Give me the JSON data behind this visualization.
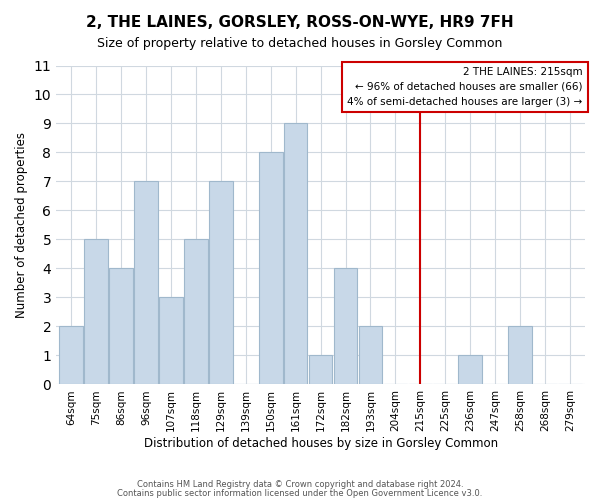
{
  "title": "2, THE LAINES, GORSLEY, ROSS-ON-WYE, HR9 7FH",
  "subtitle": "Size of property relative to detached houses in Gorsley Common",
  "xlabel": "Distribution of detached houses by size in Gorsley Common",
  "ylabel": "Number of detached properties",
  "bar_labels": [
    "64sqm",
    "75sqm",
    "86sqm",
    "96sqm",
    "107sqm",
    "118sqm",
    "129sqm",
    "139sqm",
    "150sqm",
    "161sqm",
    "172sqm",
    "182sqm",
    "193sqm",
    "204sqm",
    "215sqm",
    "225sqm",
    "236sqm",
    "247sqm",
    "258sqm",
    "268sqm",
    "279sqm"
  ],
  "bar_values": [
    2,
    5,
    4,
    7,
    3,
    5,
    7,
    0,
    8,
    9,
    1,
    4,
    2,
    0,
    0,
    0,
    1,
    0,
    2,
    0,
    0
  ],
  "bar_color": "#c8d8e8",
  "bar_edge_color": "#a0b8cc",
  "grid_color": "#d0d8e0",
  "ref_line_x": 14,
  "ref_line_color": "#cc0000",
  "ylim": [
    0,
    11
  ],
  "yticks": [
    0,
    1,
    2,
    3,
    4,
    5,
    6,
    7,
    8,
    9,
    10,
    11
  ],
  "ann_line1": "2 THE LAINES: 215sqm",
  "ann_line2": "← 96% of detached houses are smaller (66)",
  "ann_line3": "4% of semi-detached houses are larger (3) →",
  "footer_line1": "Contains HM Land Registry data © Crown copyright and database right 2024.",
  "footer_line2": "Contains public sector information licensed under the Open Government Licence v3.0.",
  "bg_color": "#ffffff",
  "plot_bg_color": "#ffffff"
}
